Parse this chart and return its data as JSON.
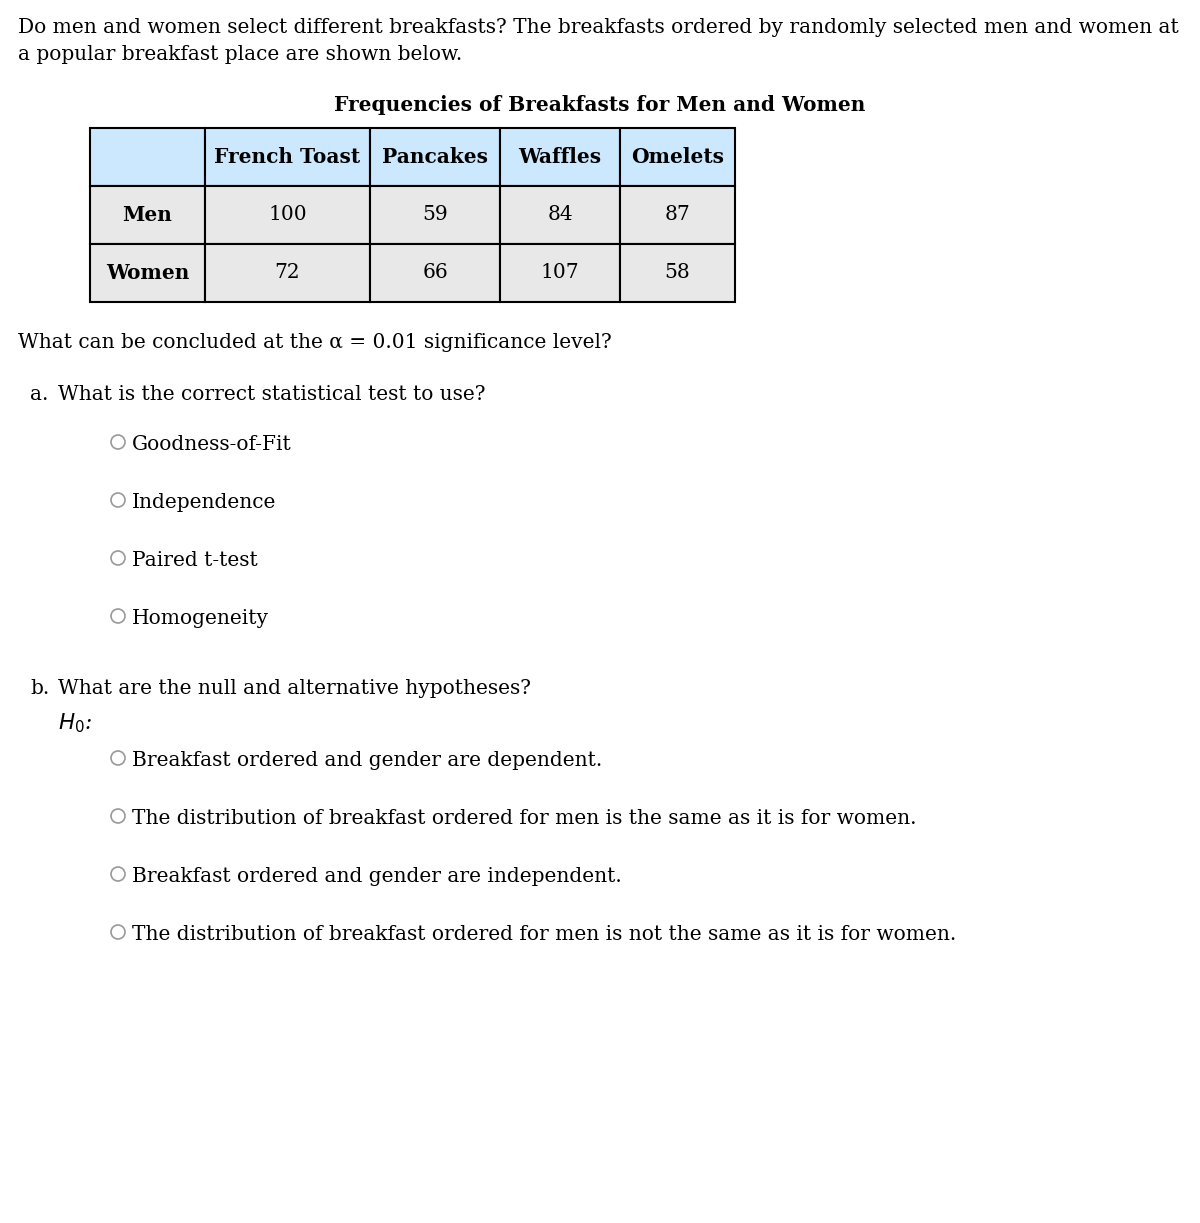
{
  "intro_line1": "Do men and women select different breakfasts? The breakfasts ordered by randomly selected men and women at",
  "intro_line2": "a popular breakfast place are shown below.",
  "table_title": "Frequencies of Breakfasts for Men and Women",
  "table_headers": [
    "",
    "French Toast",
    "Pancakes",
    "Waffles",
    "Omelets"
  ],
  "table_rows": [
    [
      "Men",
      "100",
      "59",
      "84",
      "87"
    ],
    [
      "Women",
      "72",
      "66",
      "107",
      "58"
    ]
  ],
  "significance_text": "What can be concluded at the α = 0.01 significance level?",
  "part_a_label": "a.",
  "part_a_text": "What is the correct statistical test to use?",
  "part_a_options": [
    "Goodness-of-Fit",
    "Independence",
    "Paired t-test",
    "Homogeneity"
  ],
  "part_b_label": "b.",
  "part_b_text": "What are the null and alternative hypotheses?",
  "part_b_options": [
    "Breakfast ordered and gender are dependent.",
    "The distribution of breakfast ordered for men is the same as it is for women.",
    "Breakfast ordered and gender are independent.",
    "The distribution of breakfast ordered for men is not the same as it is for women."
  ],
  "bg_color": "#ffffff",
  "text_color": "#000000",
  "table_header_bg": "#cce8ff",
  "table_data_bg": "#e8e8e8",
  "table_border_color": "#000000",
  "radio_color": "#999999",
  "font_size": 14.5
}
